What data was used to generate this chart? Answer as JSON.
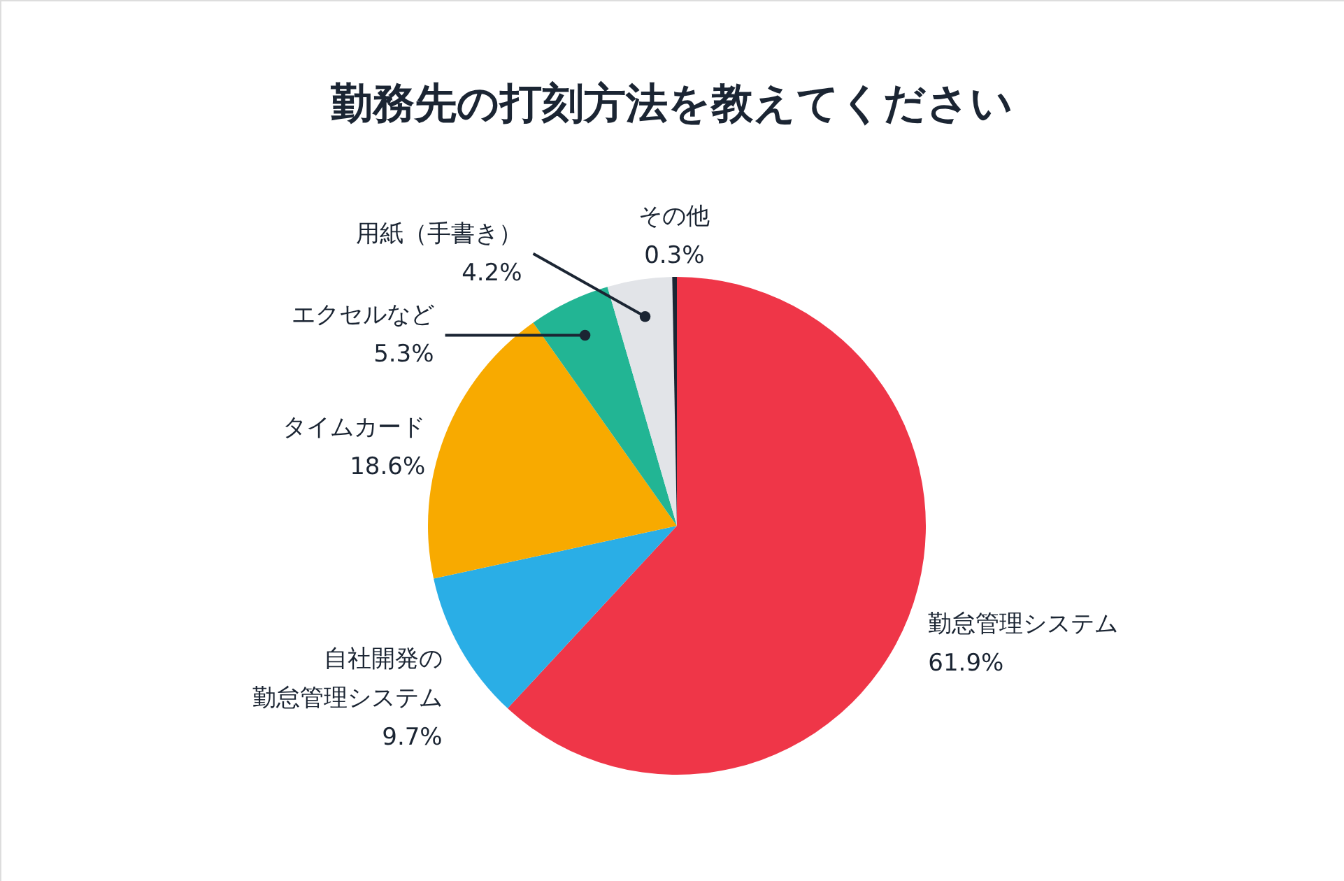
{
  "chart_data": {
    "type": "pie",
    "title": "勤務先の打刻方法を教えてください",
    "categories": [
      "勤怠管理システム",
      "自社開発の勤怠管理システム",
      "タイムカード",
      "エクセルなど",
      "用紙（手書き）",
      "その他"
    ],
    "values": [
      61.9,
      9.7,
      18.6,
      5.3,
      4.2,
      0.3
    ],
    "value_labels": [
      "61.9%",
      "9.7%",
      "18.6%",
      "5.3%",
      "4.2%",
      "0.3%"
    ],
    "colors": [
      "#ef3648",
      "#2aaee6",
      "#f8aa00",
      "#22b594",
      "#e2e4e8",
      "#1b2533"
    ]
  }
}
